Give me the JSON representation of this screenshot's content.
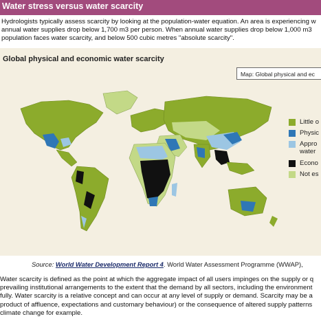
{
  "header": {
    "title": "Water stress versus water scarcity",
    "color": "#a24b7d"
  },
  "intro": {
    "lines": [
      "Hydrologists typically assess scarcity by looking at the population-water equation. An area is experiencing w",
      "annual water supplies drop below 1,700 m3 per person. When annual water supplies drop below 1,000 m3",
      "population faces water scarcity, and below 500 cubic metres \"absolute scarcity\"."
    ]
  },
  "figure": {
    "title": "Global physical and economic water scarcity",
    "map_box_label": "Map: Global physical and ec"
  },
  "legend": {
    "items": [
      {
        "label": "Little o",
        "color": "#8cab2c"
      },
      {
        "label": "Physic",
        "color": "#2f77b6"
      },
      {
        "label": "Appro",
        "color": "#9cc6e3"
      },
      {
        "label": "water",
        "color": ""
      },
      {
        "label": "Econo",
        "color": "#111111"
      },
      {
        "label": "Not es",
        "color": "#c3d987"
      }
    ]
  },
  "source": {
    "prefix": "Source:",
    "link": "World Water Development Report 4",
    "rest": ". World Water Assessment Programme (WWAP),"
  },
  "body": {
    "lines": [
      "Water scarcity is defined as the point at which the aggregate impact of all users impinges on the supply or q",
      "prevailing institutional arrangements to the extent that the demand by all sectors, including the environment",
      "fully. Water scarcity is a relative concept and can occur at any level of supply or demand. Scarcity may be a",
      "product of affluence, expectations and customary behaviour) or the consequence of altered supply patterns",
      "climate change for example."
    ]
  }
}
